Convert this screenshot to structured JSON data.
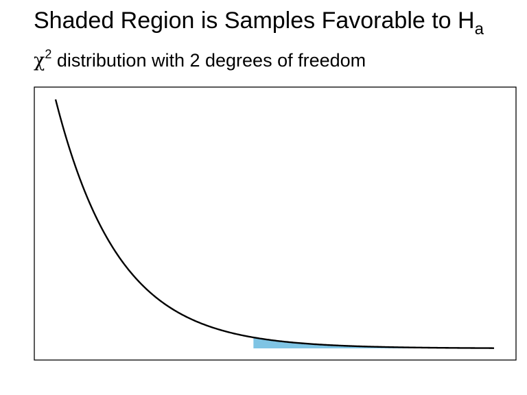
{
  "chart_data": {
    "type": "area",
    "title": {
      "main": "Shaded Region is Samples Favorable to H",
      "subscript": "a"
    },
    "subtitle": {
      "symbol": "χ",
      "superscript": "2",
      "text": " distribution with 2 degrees of freedom"
    },
    "distribution": "chi-squared",
    "degrees_of_freedom": 2,
    "curve": {
      "x_start": 0.15,
      "x_end": 14.0,
      "function": "0.5*exp(-x/2)",
      "color": "#000000"
    },
    "shaded_region": {
      "x_start": 6.4,
      "x_end": 14.0,
      "color": "#7fc4e4"
    },
    "xlim": [
      0.15,
      14.0
    ],
    "ylim": [
      0,
      0.5
    ],
    "axes_ticks_shown": false,
    "grid": false,
    "frame": true
  }
}
